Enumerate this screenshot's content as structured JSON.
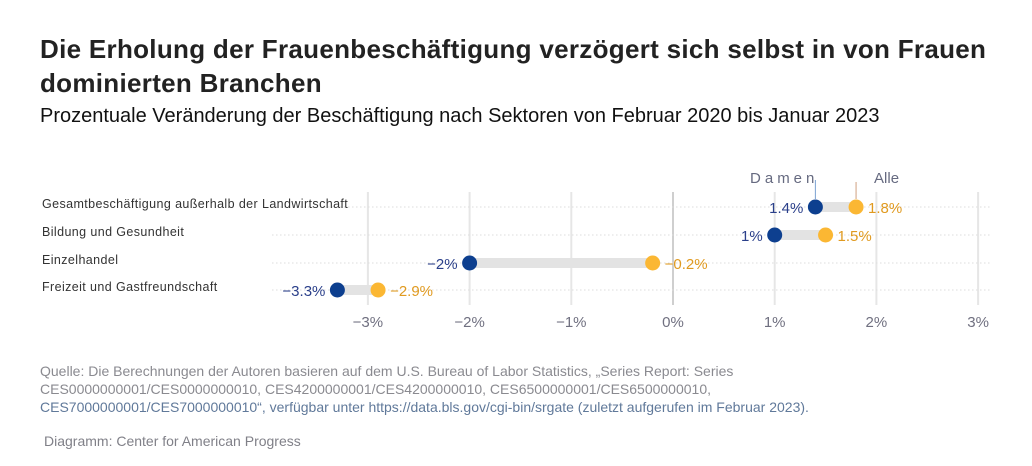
{
  "title": "Die Erholung der Frauenbeschäftigung verzögert sich selbst in von Frauen dominierten Branchen",
  "subtitle": "Prozentuale Veränderung der Beschäftigung nach Sektoren von Februar 2020 bis Januar 2023",
  "source": {
    "line1": "Quelle: Die Berechnungen der Autoren basieren auf dem U.S. Bureau of Labor Statistics, „Series Report: Series",
    "line2": "CES0000000001/CES0000000010, CES4200000001/CES4200000010, CES6500000001/CES6500000010,",
    "line3": "CES7000000001/CES7000000010“, verfügbar unter https://data.bls.gov/cgi-bin/srgate (zuletzt aufgerufen im Februar 2023)."
  },
  "credit": "Diagramm: Center for American Progress",
  "chart_data": {
    "type": "dumbbell",
    "categories": [
      "Gesamtbeschäftigung außerhalb der Landwirtschaft",
      "Bildung und Gesundheit",
      "Einzelhandel",
      "Freizeit und Gastfreundschaft"
    ],
    "series": [
      {
        "name": "Damen",
        "values": [
          1.4,
          1,
          -2,
          -3.3
        ],
        "labels": [
          "1.4%",
          "1%",
          "−2%",
          "−3.3%"
        ],
        "color": "#0d3f8f"
      },
      {
        "name": "Alle",
        "values": [
          1.8,
          1.5,
          -0.2,
          -2.9
        ],
        "labels": [
          "1.8%",
          "1.5%",
          "−0.2%",
          "−2.9%"
        ],
        "color": "#fbb733"
      }
    ],
    "xlim": [
      -3,
      3
    ],
    "xticks": [
      -3,
      -2,
      -1,
      0,
      1,
      2,
      3
    ],
    "xtick_labels": [
      "−3%",
      "−2%",
      "−1%",
      "0%",
      "1%",
      "2%",
      "3%"
    ],
    "grid": true
  }
}
